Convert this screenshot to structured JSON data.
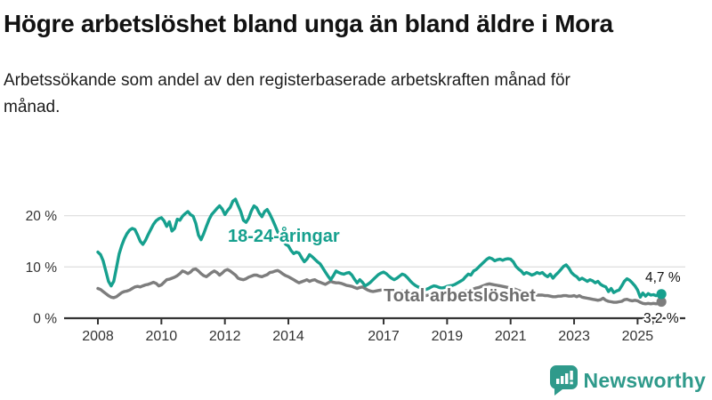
{
  "header": {
    "title": "Högre arbetslöshet bland unga än bland äldre i Mora",
    "subtitle": "Arbetssökande som andel av den registerbaserade arbetskraften månad för månad."
  },
  "footer": {
    "brand": "Newsworthy"
  },
  "colors": {
    "youth": "#16a08e",
    "total": "#7d7d7d",
    "axis": "#333333",
    "grid": "#e0e0e0",
    "value_label": "#111111",
    "brand": "#2f9a8b",
    "background": "#ffffff"
  },
  "chart_data": {
    "type": "line",
    "unit": "%",
    "frequency": "monthly",
    "start": "2008-01",
    "end": "2025-10",
    "grid": "horizontal",
    "legend_position": "inline-labels",
    "ylim": [
      0,
      24
    ],
    "y_ticks": [
      0,
      10,
      20
    ],
    "y_tick_labels": [
      "0 %",
      "10 %",
      "20 %"
    ],
    "x_ticks": [
      2008,
      2010,
      2012,
      2014,
      2017,
      2019,
      2021,
      2023,
      2025
    ],
    "x_tick_labels": [
      "2008",
      "2010",
      "2012",
      "2014",
      "2017",
      "2019",
      "2021",
      "2023",
      "2025"
    ],
    "series": [
      {
        "name": "18-24-åringar",
        "color": "#16a08e",
        "end_label": "4,7 %",
        "end_value": 4.7,
        "values": [
          12.9,
          12.4,
          11.2,
          9.2,
          7.2,
          6.3,
          7.2,
          9.8,
          12.5,
          14.2,
          15.5,
          16.5,
          17.2,
          17.5,
          17.3,
          16.2,
          15.0,
          14.4,
          15.2,
          16.3,
          17.3,
          18.3,
          19.0,
          19.4,
          19.6,
          19.0,
          17.9,
          18.8,
          17.0,
          17.5,
          19.3,
          19.1,
          19.9,
          20.4,
          20.8,
          20.2,
          19.9,
          18.5,
          16.2,
          15.3,
          16.5,
          17.9,
          19.2,
          20.2,
          20.8,
          21.4,
          21.9,
          21.3,
          20.2,
          21.0,
          21.6,
          22.8,
          23.2,
          22.0,
          20.8,
          19.1,
          18.7,
          19.5,
          20.9,
          21.9,
          21.5,
          20.5,
          19.8,
          20.8,
          21.2,
          20.3,
          19.2,
          18.0,
          16.8,
          15.8,
          15.0,
          14.4,
          14.1,
          13.2,
          12.6,
          12.9,
          12.7,
          11.8,
          11.0,
          11.5,
          12.4,
          12.0,
          11.5,
          11.0,
          10.6,
          9.8,
          9.0,
          8.2,
          7.5,
          8.3,
          9.2,
          8.9,
          8.7,
          8.6,
          8.8,
          8.9,
          8.4,
          7.6,
          6.9,
          7.5,
          7.0,
          6.3,
          6.6,
          7.0,
          7.5,
          8.0,
          8.5,
          8.8,
          9.0,
          8.7,
          8.2,
          7.8,
          7.5,
          7.8,
          8.2,
          8.6,
          8.4,
          7.9,
          7.3,
          6.8,
          6.4,
          6.1,
          5.9,
          5.7,
          5.6,
          5.8,
          6.1,
          6.3,
          6.2,
          6.0,
          5.9,
          6.0,
          6.2,
          6.3,
          6.4,
          6.6,
          6.9,
          7.2,
          7.5,
          8.1,
          8.6,
          8.4,
          9.2,
          9.5,
          10.0,
          10.5,
          11.0,
          11.5,
          11.8,
          11.6,
          11.2,
          11.4,
          11.5,
          11.3,
          11.5,
          11.6,
          11.5,
          11.0,
          10.1,
          9.6,
          9.2,
          8.6,
          8.9,
          8.7,
          8.4,
          8.6,
          8.9,
          8.7,
          8.9,
          8.4,
          8.1,
          8.6,
          7.8,
          8.4,
          8.9,
          9.5,
          10.1,
          10.4,
          9.8,
          8.9,
          8.4,
          8.1,
          7.5,
          7.8,
          7.5,
          7.2,
          7.5,
          7.3,
          6.9,
          7.2,
          6.6,
          6.3,
          6.1,
          5.2,
          5.8,
          5.0,
          5.3,
          5.5,
          6.3,
          7.2,
          7.7,
          7.4,
          6.9,
          6.3,
          5.5,
          4.1,
          4.9,
          4.3,
          4.8,
          4.5,
          4.6,
          4.4,
          4.6,
          4.7
        ]
      },
      {
        "name": "Total arbetslöshet",
        "color": "#7d7d7d",
        "end_label": "3,2 %",
        "end_value": 3.2,
        "values": [
          5.8,
          5.6,
          5.2,
          4.8,
          4.4,
          4.1,
          4.0,
          4.2,
          4.6,
          5.0,
          5.2,
          5.3,
          5.5,
          5.8,
          6.1,
          6.2,
          6.1,
          6.3,
          6.5,
          6.6,
          6.8,
          7.0,
          6.8,
          6.3,
          6.5,
          7.0,
          7.5,
          7.6,
          7.8,
          8.0,
          8.3,
          8.7,
          9.2,
          9.0,
          8.7,
          9.0,
          9.5,
          9.6,
          9.2,
          8.7,
          8.3,
          8.1,
          8.5,
          8.9,
          9.2,
          8.9,
          8.4,
          8.8,
          9.3,
          9.5,
          9.2,
          8.8,
          8.4,
          7.8,
          7.6,
          7.5,
          7.7,
          8.0,
          8.2,
          8.4,
          8.4,
          8.2,
          8.1,
          8.3,
          8.5,
          8.9,
          9.0,
          9.2,
          9.3,
          9.0,
          8.6,
          8.3,
          8.1,
          7.8,
          7.5,
          7.2,
          6.9,
          7.1,
          7.3,
          7.5,
          7.2,
          7.4,
          7.5,
          7.2,
          7.0,
          6.8,
          6.6,
          6.9,
          7.2,
          7.0,
          6.9,
          6.9,
          6.8,
          6.6,
          6.4,
          6.3,
          6.2,
          6.0,
          5.8,
          6.0,
          6.1,
          5.8,
          5.5,
          5.3,
          5.2,
          5.3,
          5.4,
          5.5,
          5.5,
          5.4,
          5.2,
          5.1,
          5.0,
          5.1,
          5.2,
          5.3,
          5.2,
          5.1,
          5.0,
          4.9,
          4.8,
          4.7,
          4.6,
          4.5,
          4.4,
          4.5,
          4.6,
          4.7,
          4.6,
          4.5,
          4.4,
          4.5,
          4.6,
          4.7,
          4.8,
          4.9,
          5.0,
          5.1,
          5.2,
          5.3,
          5.4,
          5.5,
          5.7,
          5.9,
          6.0,
          6.2,
          6.4,
          6.6,
          6.7,
          6.6,
          6.5,
          6.4,
          6.3,
          6.2,
          6.1,
          6.0,
          5.9,
          5.8,
          5.6,
          5.4,
          5.2,
          5.0,
          4.9,
          4.8,
          4.7,
          4.6,
          4.5,
          4.5,
          4.5,
          4.4,
          4.4,
          4.3,
          4.2,
          4.2,
          4.3,
          4.3,
          4.4,
          4.4,
          4.3,
          4.3,
          4.4,
          4.2,
          4.4,
          4.1,
          4.0,
          3.9,
          3.8,
          3.7,
          3.6,
          3.5,
          3.6,
          3.9,
          3.5,
          3.3,
          3.2,
          3.1,
          3.1,
          3.2,
          3.3,
          3.6,
          3.7,
          3.5,
          3.4,
          3.5,
          3.4,
          3.1,
          2.9,
          2.8,
          2.9,
          2.8,
          2.9,
          2.8,
          2.9,
          3.2
        ]
      }
    ]
  }
}
